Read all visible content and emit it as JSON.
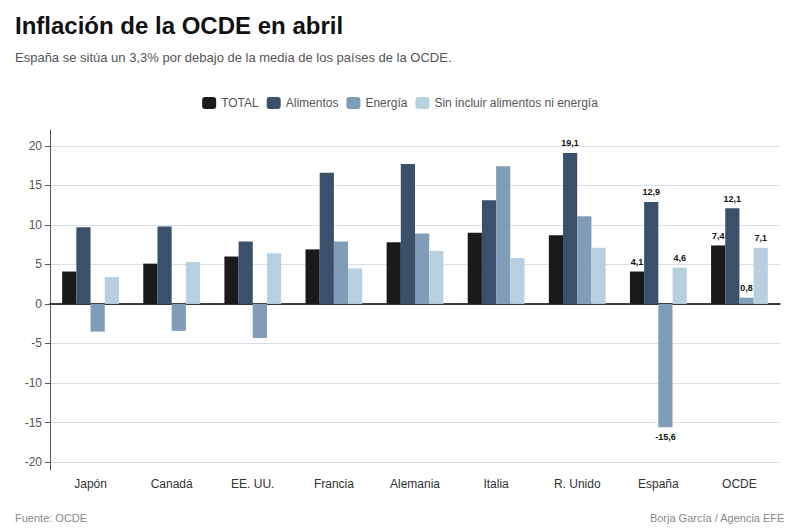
{
  "chart_data": {
    "type": "bar",
    "title": "Inflación de la OCDE en abril",
    "subtitle": "España se sitúa un 3,3% por debajo de la media de los países de la OCDE.",
    "annotations": [
      "Fuente: OCDE",
      "Borja García / Agencia EFE"
    ],
    "categories": [
      "Japón",
      "Canadá",
      "EE. UU.",
      "Francia",
      "Alemania",
      "Italia",
      "R. Unido",
      "España",
      "OCDE"
    ],
    "series": [
      {
        "name": "TOTAL",
        "color": "#1a1a1a",
        "values": [
          4.1,
          5.1,
          6.0,
          6.9,
          7.8,
          9.0,
          8.7,
          4.1,
          7.4
        ],
        "value_labels": [
          null,
          null,
          null,
          null,
          null,
          null,
          null,
          "4,1",
          "7,4"
        ]
      },
      {
        "name": "Alimentos",
        "color": "#3a506b",
        "values": [
          9.7,
          9.8,
          7.9,
          16.6,
          17.7,
          13.1,
          19.1,
          12.9,
          12.1
        ],
        "value_labels": [
          null,
          null,
          null,
          null,
          null,
          null,
          "19,1",
          "12,9",
          "12,1"
        ]
      },
      {
        "name": "Energía",
        "color": "#7f9db8",
        "values": [
          -3.5,
          -3.4,
          -4.3,
          7.9,
          8.9,
          17.4,
          11.1,
          -15.6,
          0.8
        ],
        "value_labels": [
          null,
          null,
          null,
          null,
          null,
          null,
          null,
          "-15,6",
          "0,8"
        ]
      },
      {
        "name": "Sin incluir alimentos ni energía",
        "color": "#b8cfdf",
        "values": [
          3.4,
          5.3,
          6.4,
          4.5,
          6.7,
          5.8,
          7.1,
          4.6,
          7.1
        ],
        "value_labels": [
          null,
          null,
          null,
          null,
          null,
          null,
          null,
          "4,6",
          "7,1"
        ]
      }
    ],
    "ylim": [
      -21,
      22
    ],
    "yticks": [
      -20,
      -15,
      -10,
      -5,
      0,
      5,
      10,
      15,
      20
    ],
    "grid": true,
    "legend": "top"
  }
}
